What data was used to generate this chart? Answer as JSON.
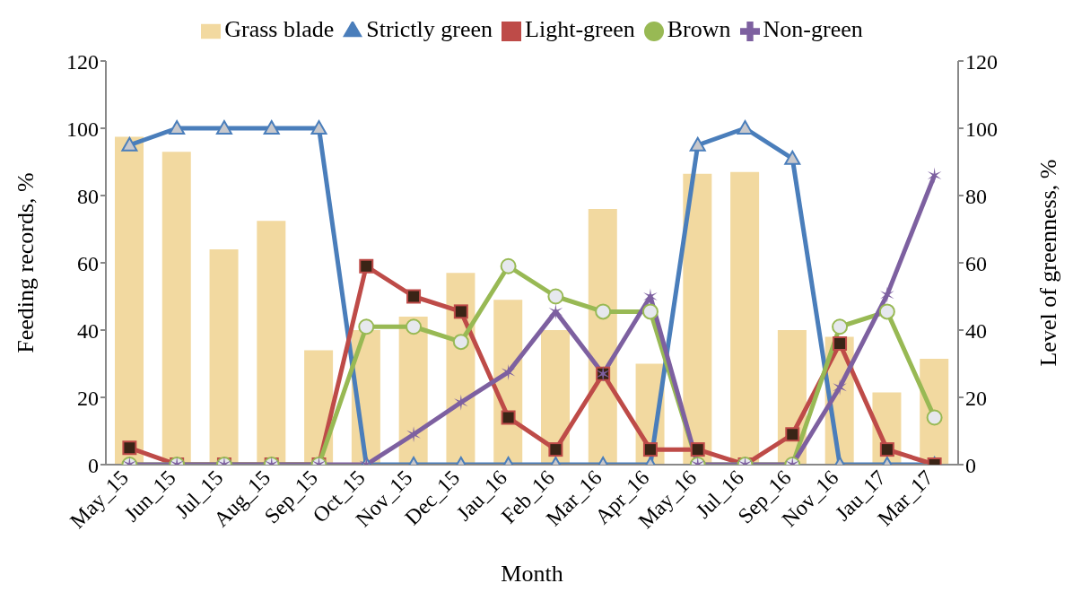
{
  "chart_data": {
    "type": "bar",
    "xlabel": "Month",
    "ylabel": "Feeding records, %",
    "y2label": "Level of greenness, %",
    "categories": [
      "May_15",
      "Jun_15",
      "Jul_15",
      "Aug_15",
      "Sep_15",
      "Oct_15",
      "Nov_15",
      "Dec_15",
      "Jau_16",
      "Feb_16",
      "Mar_16",
      "Apr_16",
      "May_16",
      "Jul_16",
      "Sep_16",
      "Nov_16",
      "Jau_17",
      "Mar_17"
    ],
    "series": [
      {
        "name": "Grass blade",
        "color": "#f2d9a0",
        "values": [
          97.5,
          93,
          64,
          72.5,
          34,
          40,
          44,
          57,
          49,
          40,
          76,
          30,
          86.5,
          87,
          40,
          38,
          21.5,
          31.5
        ]
      },
      {
        "name": "Strictly green",
        "type": "line",
        "color": "#4a7ebb",
        "marker": "triangle",
        "values": [
          95,
          100,
          100,
          100,
          100,
          0,
          0,
          0,
          0,
          0,
          0,
          0,
          95,
          100,
          91,
          0,
          0,
          0
        ]
      },
      {
        "name": "Light-green",
        "type": "line",
        "color": "#be4b48",
        "marker": "square",
        "values": [
          5,
          0,
          0,
          0,
          0,
          59,
          50,
          45.5,
          14,
          4.5,
          27,
          4.5,
          4.5,
          0,
          9,
          36,
          4.5,
          0
        ]
      },
      {
        "name": "Brown",
        "type": "line",
        "color": "#98b954",
        "marker": "circle",
        "values": [
          0,
          0,
          0,
          0,
          0,
          41,
          41,
          36.5,
          59,
          50,
          45.5,
          45.5,
          0,
          0,
          0,
          41,
          45.5,
          14
        ]
      },
      {
        "name": "Non-green",
        "type": "line",
        "color": "#7d60a0",
        "marker": "cross",
        "values": [
          0,
          0,
          0,
          0,
          0,
          0,
          9,
          18.5,
          27.5,
          45.5,
          27,
          50,
          0,
          0,
          0,
          23,
          50.5,
          86
        ]
      }
    ],
    "ylim": [
      0,
      120
    ],
    "yticks": [
      0,
      20,
      40,
      60,
      80,
      100,
      120
    ],
    "y2lim": [
      0,
      120
    ],
    "y2ticks": [
      0,
      20,
      40,
      60,
      80,
      100,
      120
    ],
    "grid": false,
    "legend": "top"
  }
}
